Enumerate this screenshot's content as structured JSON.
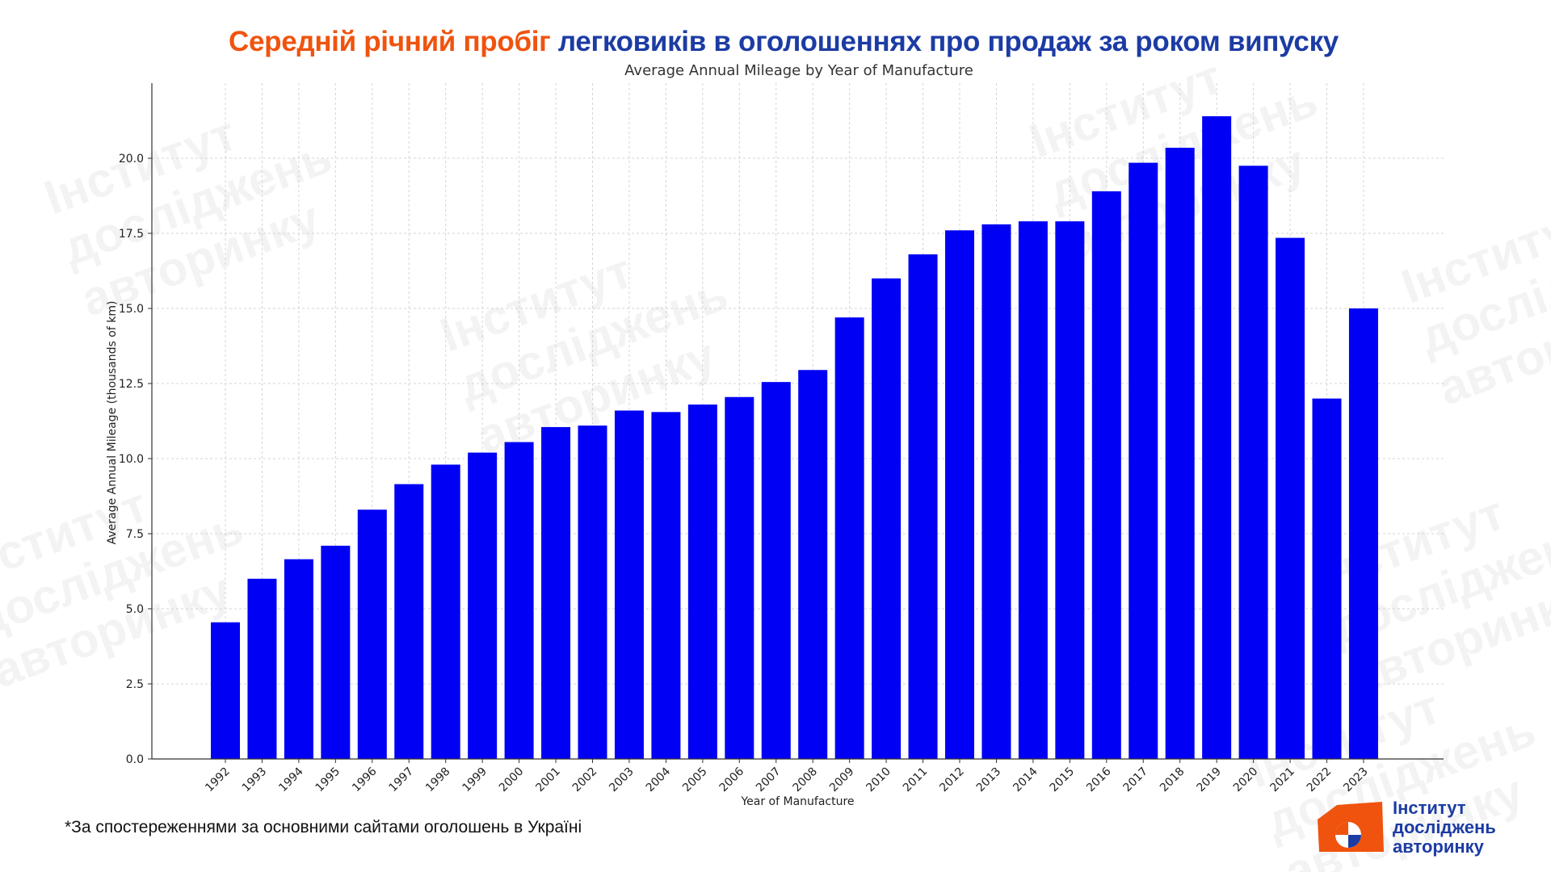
{
  "header": {
    "title_highlight": "Середній річний пробіг",
    "title_rest": "легковиків в оголошеннях про продаж за роком випуску"
  },
  "footnote": "*За спостереженнями за основними сайтами оголошень в Україні",
  "logo": {
    "line1": "Інститут",
    "line2": "досліджень",
    "line3": "авторинку"
  },
  "watermark": {
    "line1": "Інститут",
    "line2": "досліджень",
    "line3": "авторинку"
  },
  "colors": {
    "bar": "#0000f5",
    "title_highlight": "#f0530e",
    "title_rest": "#1c3ca4",
    "logo_orange": "#f0530e",
    "logo_blue": "#1c3ca4"
  },
  "chart_data": {
    "type": "bar",
    "title": "Average Annual Mileage by Year of Manufacture",
    "xlabel": "Year of Manufacture",
    "ylabel": "Average Annual Mileage (thousands of km)",
    "ylim": [
      0,
      22.5
    ],
    "yticks": [
      "0.0",
      "2.5",
      "5.0",
      "7.5",
      "10.0",
      "12.5",
      "15.0",
      "17.5",
      "20.0"
    ],
    "grid": true,
    "categories": [
      "1992",
      "1993",
      "1994",
      "1995",
      "1996",
      "1997",
      "1998",
      "1999",
      "2000",
      "2001",
      "2002",
      "2003",
      "2004",
      "2005",
      "2006",
      "2007",
      "2008",
      "2009",
      "2010",
      "2011",
      "2012",
      "2013",
      "2014",
      "2015",
      "2016",
      "2017",
      "2018",
      "2019",
      "2020",
      "2021",
      "2022",
      "2023"
    ],
    "values": [
      4.55,
      6.0,
      6.65,
      7.1,
      8.3,
      9.15,
      9.8,
      10.2,
      10.55,
      11.05,
      11.1,
      11.6,
      11.55,
      11.8,
      12.05,
      12.55,
      12.95,
      14.7,
      16.0,
      16.8,
      17.6,
      17.8,
      17.9,
      17.9,
      18.9,
      19.85,
      20.35,
      21.4,
      19.75,
      17.35,
      12.0,
      15.0
    ]
  }
}
